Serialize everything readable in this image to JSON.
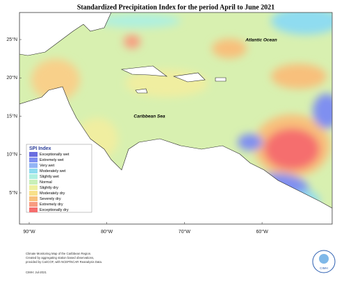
{
  "title": "Standardized Precipitation Index for the period April to June 2021",
  "lat_ticks": [
    {
      "value": 25,
      "label": "25°N"
    },
    {
      "value": 20,
      "label": "20°N"
    },
    {
      "value": 15,
      "label": "15°N"
    },
    {
      "value": 10,
      "label": "10°N"
    },
    {
      "value": 5,
      "label": "5°N"
    }
  ],
  "lon_ticks": [
    {
      "value": -90,
      "label": "90°W"
    },
    {
      "value": -80,
      "label": "80°W"
    },
    {
      "value": -70,
      "label": "70°W"
    },
    {
      "value": -60,
      "label": "60°W"
    }
  ],
  "sea_labels": [
    "Atlantic Ocean",
    "Caribbean Sea"
  ],
  "legend": {
    "title": "SPI Index",
    "entries": [
      {
        "label": "Exceptionally wet",
        "color": "#6a6ee0"
      },
      {
        "label": "Extremely wet",
        "color": "#7f8ff0"
      },
      {
        "label": "Very wet",
        "color": "#93b4f5"
      },
      {
        "label": "Moderately wet",
        "color": "#8fdcf0"
      },
      {
        "label": "Slightly wet",
        "color": "#aef0e0"
      },
      {
        "label": "Normal",
        "color": "#c8f0b8"
      },
      {
        "label": "Slightly dry",
        "color": "#eef0a0"
      },
      {
        "label": "Moderately dry",
        "color": "#f8e08a"
      },
      {
        "label": "Severely dry",
        "color": "#f8c07c"
      },
      {
        "label": "Extremely dry",
        "color": "#f89c80"
      },
      {
        "label": "Exceptionally dry",
        "color": "#f56e6e"
      }
    ]
  },
  "footer": [
    "Climate Monitoring Map of the Caribbean Region.",
    "Created by aggregating station based observations,",
    "provided by CariCOF, with NCEP/NCAR Reanalysis Data.",
    "CIMH: Jul-2021"
  ],
  "logo": "CIMH"
}
